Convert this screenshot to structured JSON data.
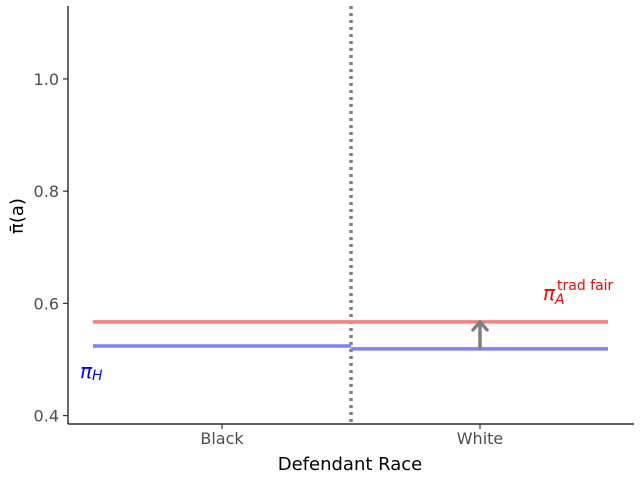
{
  "chart_data": {
    "type": "line",
    "xlabel": "Defendant Race",
    "ylabel": "π̄(a)",
    "ylim": [
      0.385,
      1.13
    ],
    "yticks": [
      0.4,
      0.6,
      0.8,
      1.0
    ],
    "ytick_labels": [
      "0.4",
      "0.6",
      "0.8",
      "1.0"
    ],
    "categories": [
      "Black",
      "White"
    ],
    "grid": false,
    "series": [
      {
        "name": "π_A^trad fair",
        "label_main": "π",
        "label_sub": "A",
        "label_sup": "trad fair",
        "color": "#ff7f7f",
        "label_color": "#ff0000",
        "segments": [
          {
            "x_from": "Black",
            "x_to": "White",
            "y": 0.567
          }
        ]
      },
      {
        "name": "π_H",
        "label_main": "π",
        "label_sub": "H",
        "color": "#7f7fff",
        "label_color": "#0000ff",
        "segments": [
          {
            "x_from": "Black",
            "x_to": "divider",
            "y": 0.524
          },
          {
            "x_from": "divider",
            "x_to": "White",
            "y": 0.519
          }
        ]
      }
    ],
    "divider": {
      "style": "dotted",
      "color": "#808080"
    },
    "arrow": {
      "category": "White",
      "from": 0.519,
      "to": 0.567,
      "color": "#808080"
    }
  }
}
